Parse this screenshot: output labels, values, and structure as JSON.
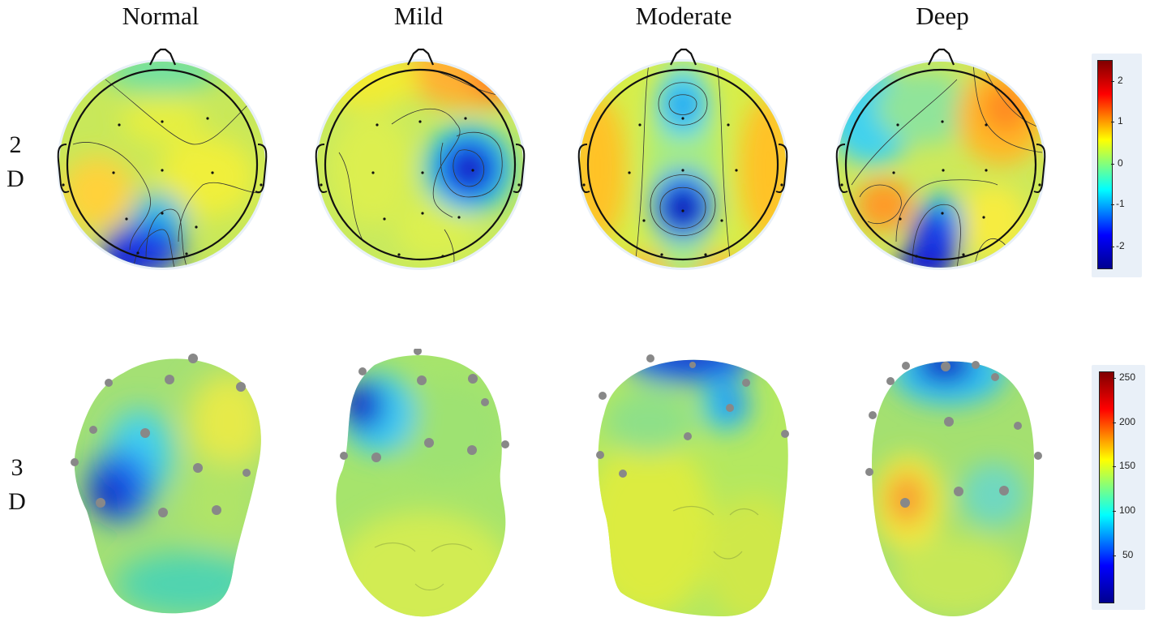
{
  "columns": [
    {
      "label": "Normal"
    },
    {
      "label": "Mild"
    },
    {
      "label": "Moderate"
    },
    {
      "label": "Deep"
    }
  ],
  "rows": {
    "r2d": {
      "line1": "2",
      "line2": "D"
    },
    "r3d": {
      "line1": "3",
      "line2": "D"
    }
  },
  "colorbar_2d": {
    "ticks": [
      "2",
      "1",
      "0",
      "-1",
      "-2"
    ],
    "min": -2.6,
    "max": 2.6,
    "values": [
      2,
      1,
      0,
      -1,
      -2
    ]
  },
  "colorbar_3d": {
    "ticks": [
      "250",
      "200",
      "150",
      "100",
      "50"
    ],
    "min": 0,
    "max": 260,
    "values": [
      250,
      200,
      150,
      100,
      50
    ]
  },
  "colormap": [
    "#00008f",
    "#0000ff",
    "#00ffff",
    "#ffff00",
    "#ff0000",
    "#800000"
  ]
}
